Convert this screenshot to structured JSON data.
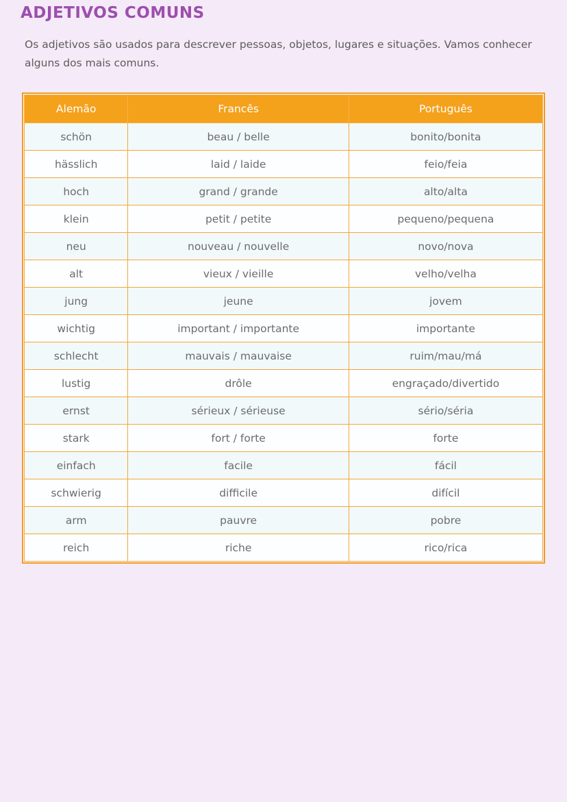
{
  "page": {
    "title": "ADJETIVOS COMUNS",
    "intro": "Os adjetivos são usados para descrever pessoas, objetos, lugares e situações. Vamos conhecer alguns dos mais comuns."
  },
  "colors": {
    "page_bg": "#f5eaf7",
    "title_text": "#9c4fae",
    "table_header_bg": "#f4a11c",
    "table_outer_border": "#ee9b28",
    "table_cell_border": "#f2a63a",
    "row_alt_bg": "#f2f9fb",
    "row_bg": "#fdfeff",
    "cell_text": "#6b6b6b",
    "body_text": "#5c5c5c"
  },
  "table": {
    "headers": [
      "Alemão",
      "Francês",
      "Português"
    ],
    "rows": [
      [
        "schön",
        "beau / belle",
        "bonito/bonita"
      ],
      [
        "hässlich",
        "laid / laide",
        "feio/feia"
      ],
      [
        "hoch",
        "grand / grande",
        "alto/alta"
      ],
      [
        "klein",
        "petit / petite",
        "pequeno/pequena"
      ],
      [
        "neu",
        "nouveau / nouvelle",
        "novo/nova"
      ],
      [
        "alt",
        "vieux / vieille",
        "velho/velha"
      ],
      [
        "jung",
        "jeune",
        "jovem"
      ],
      [
        "wichtig",
        "important / importante",
        "importante"
      ],
      [
        "schlecht",
        "mauvais / mauvaise",
        "ruim/mau/má"
      ],
      [
        "lustig",
        "drôle",
        "engraçado/divertido"
      ],
      [
        "ernst",
        "sérieux / sérieuse",
        "sério/séria"
      ],
      [
        "stark",
        "fort / forte",
        "forte"
      ],
      [
        "einfach",
        "facile",
        "fácil"
      ],
      [
        "schwierig",
        "difficile",
        "difícil"
      ],
      [
        "arm",
        "pauvre",
        "pobre"
      ],
      [
        "reich",
        "riche",
        "rico/rica"
      ]
    ]
  }
}
